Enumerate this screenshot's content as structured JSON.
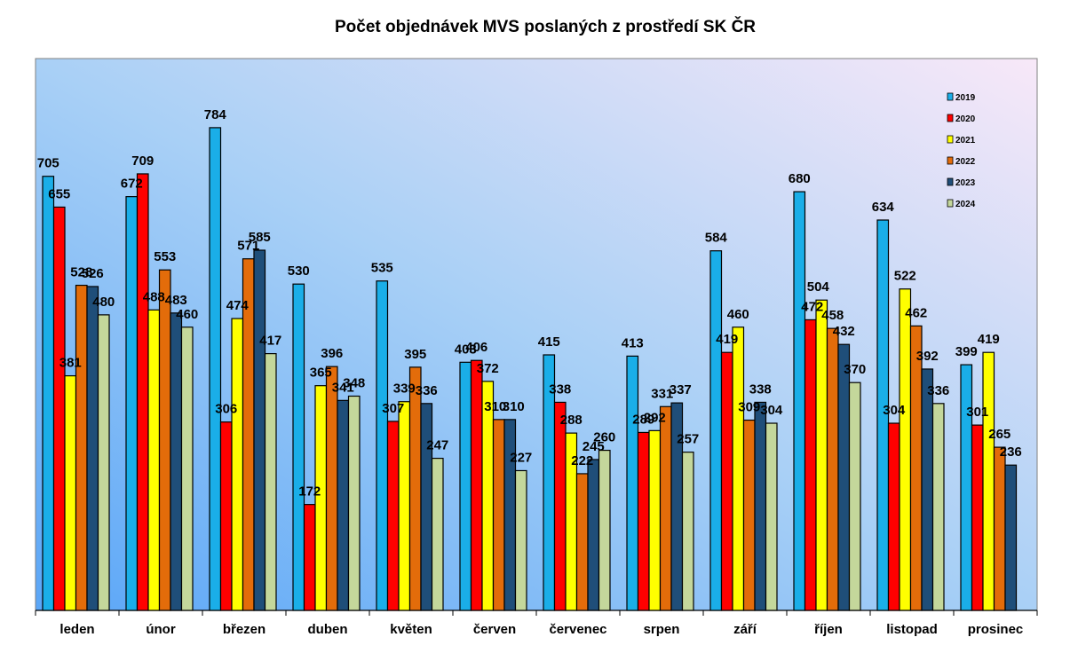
{
  "chart_data": {
    "type": "bar",
    "title": "Počet objednávek MVS poslaných z prostředí SK ČR",
    "xlabel": "",
    "ylabel": "",
    "ylim": [
      0,
      900
    ],
    "grid": false,
    "legend_position": "top-right",
    "categories": [
      "leden",
      "únor",
      "březen",
      "duben",
      "květen",
      "červen",
      "červenec",
      "srpen",
      "září",
      "říjen",
      "listopad",
      "prosinec"
    ],
    "series": [
      {
        "name": "2019",
        "color": "#1aaee8",
        "values": [
          705,
          672,
          784,
          530,
          535,
          403,
          415,
          413,
          584,
          680,
          634,
          399
        ]
      },
      {
        "name": "2020",
        "color": "#ff0000",
        "values": [
          655,
          709,
          306,
          172,
          307,
          406,
          338,
          289,
          419,
          472,
          304,
          301
        ]
      },
      {
        "name": "2021",
        "color": "#ffff00",
        "values": [
          381,
          488,
          474,
          365,
          339,
          372,
          288,
          292,
          460,
          504,
          522,
          419
        ]
      },
      {
        "name": "2022",
        "color": "#e36c0a",
        "values": [
          528,
          553,
          571,
          396,
          395,
          310,
          222,
          331,
          309,
          458,
          462,
          265
        ]
      },
      {
        "name": "2023",
        "color": "#1f4e79",
        "values": [
          526,
          483,
          585,
          341,
          336,
          310,
          245,
          337,
          338,
          432,
          392,
          236
        ]
      },
      {
        "name": "2024",
        "color": "#c4d79b",
        "values": [
          480,
          460,
          417,
          348,
          247,
          227,
          260,
          257,
          304,
          370,
          336,
          null
        ]
      }
    ],
    "label_texts": [
      [
        "705",
        "672",
        "784",
        "530",
        "535",
        "403",
        "415",
        "413",
        "584",
        "680",
        "634",
        "399"
      ],
      [
        "655",
        "709",
        "306",
        "172",
        "307",
        "406",
        "338",
        "289",
        "419",
        "472",
        "304",
        "301"
      ],
      [
        "381",
        "488",
        "474",
        "365",
        "339",
        "372",
        "288",
        "292",
        "460",
        "504",
        "522",
        "419"
      ],
      [
        "528",
        "553",
        "571",
        "396",
        "395",
        "310",
        "222",
        "331",
        "309",
        "458",
        "462",
        "265"
      ],
      [
        "526",
        "483",
        "585",
        "341",
        "336",
        "310",
        "245",
        "337",
        "338",
        "432",
        "392",
        "236"
      ],
      [
        "480",
        "460",
        "417",
        "348",
        "247",
        "227",
        "260",
        "257",
        "304",
        "370",
        "336",
        ""
      ]
    ]
  }
}
